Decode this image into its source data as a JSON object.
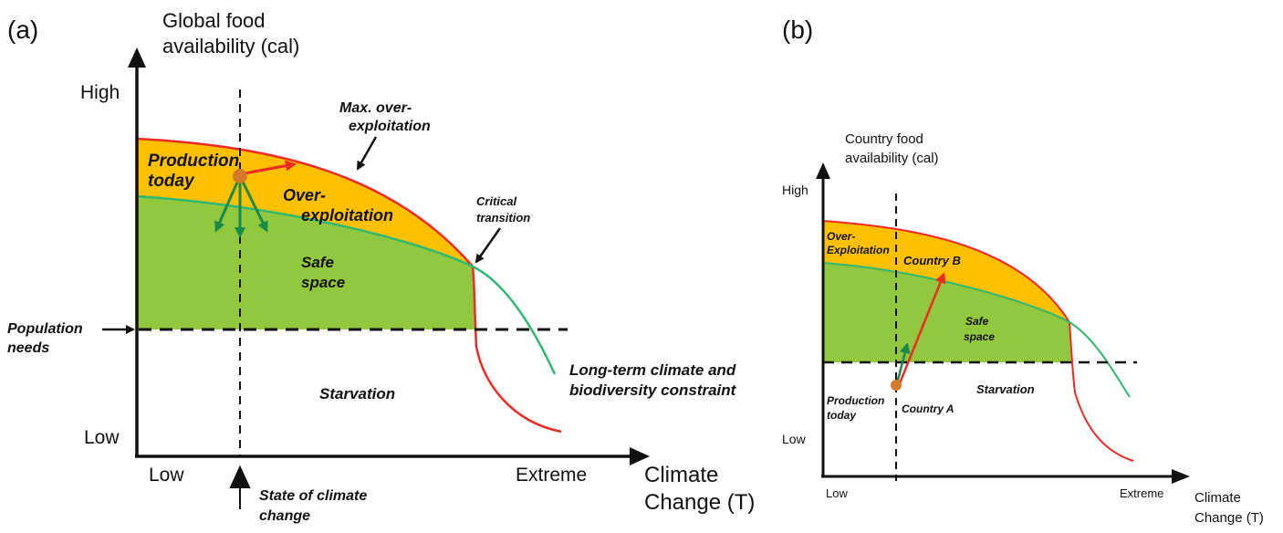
{
  "panel_a": {
    "label": "(a)",
    "y_title": [
      "Global food",
      "availability (cal)"
    ],
    "y_high": "High",
    "y_low": "Low",
    "x_low": "Low",
    "x_extreme": "Extreme",
    "x_title": [
      "Climate",
      "Change (T)"
    ],
    "labels": {
      "production_today": [
        "Production",
        "today"
      ],
      "over_exploitation": [
        "Over-",
        "exploitation"
      ],
      "max_over_exploitation": [
        "Max. over-",
        "exploitation"
      ],
      "critical_transition": [
        "Critical",
        "transition"
      ],
      "safe_space": [
        "Safe",
        "space"
      ],
      "population_needs": [
        "Population",
        "needs"
      ],
      "starvation": "Starvation",
      "long_term": [
        "Long-term climate and",
        "biodiversity constraint"
      ],
      "state_of_climate": [
        "State of climate",
        "change"
      ]
    }
  },
  "panel_b": {
    "label": "(b)",
    "y_title": [
      "Country food",
      "availability (cal)"
    ],
    "y_high": "High",
    "y_low": "Low",
    "x_low": "Low",
    "x_extreme": "Extreme",
    "x_title": [
      "Climate",
      "Change (T)"
    ],
    "labels": {
      "over_exploitation": [
        "Over-",
        "Exploitation"
      ],
      "country_b": "Country B",
      "safe_space": [
        "Safe",
        "space"
      ],
      "starvation": "Starvation",
      "production_today": [
        "Production",
        "today"
      ],
      "country_a": "Country A"
    }
  },
  "colors": {
    "over_exploitation_fill": "#FFC000",
    "safe_space_fill": "#92C83E",
    "max_curve": "#EE2A24",
    "constraint_curve": "#2EB872",
    "green_arrows": "#1A8A4A",
    "red_arrow": "#EE2A24",
    "dot": "#D4782A"
  }
}
